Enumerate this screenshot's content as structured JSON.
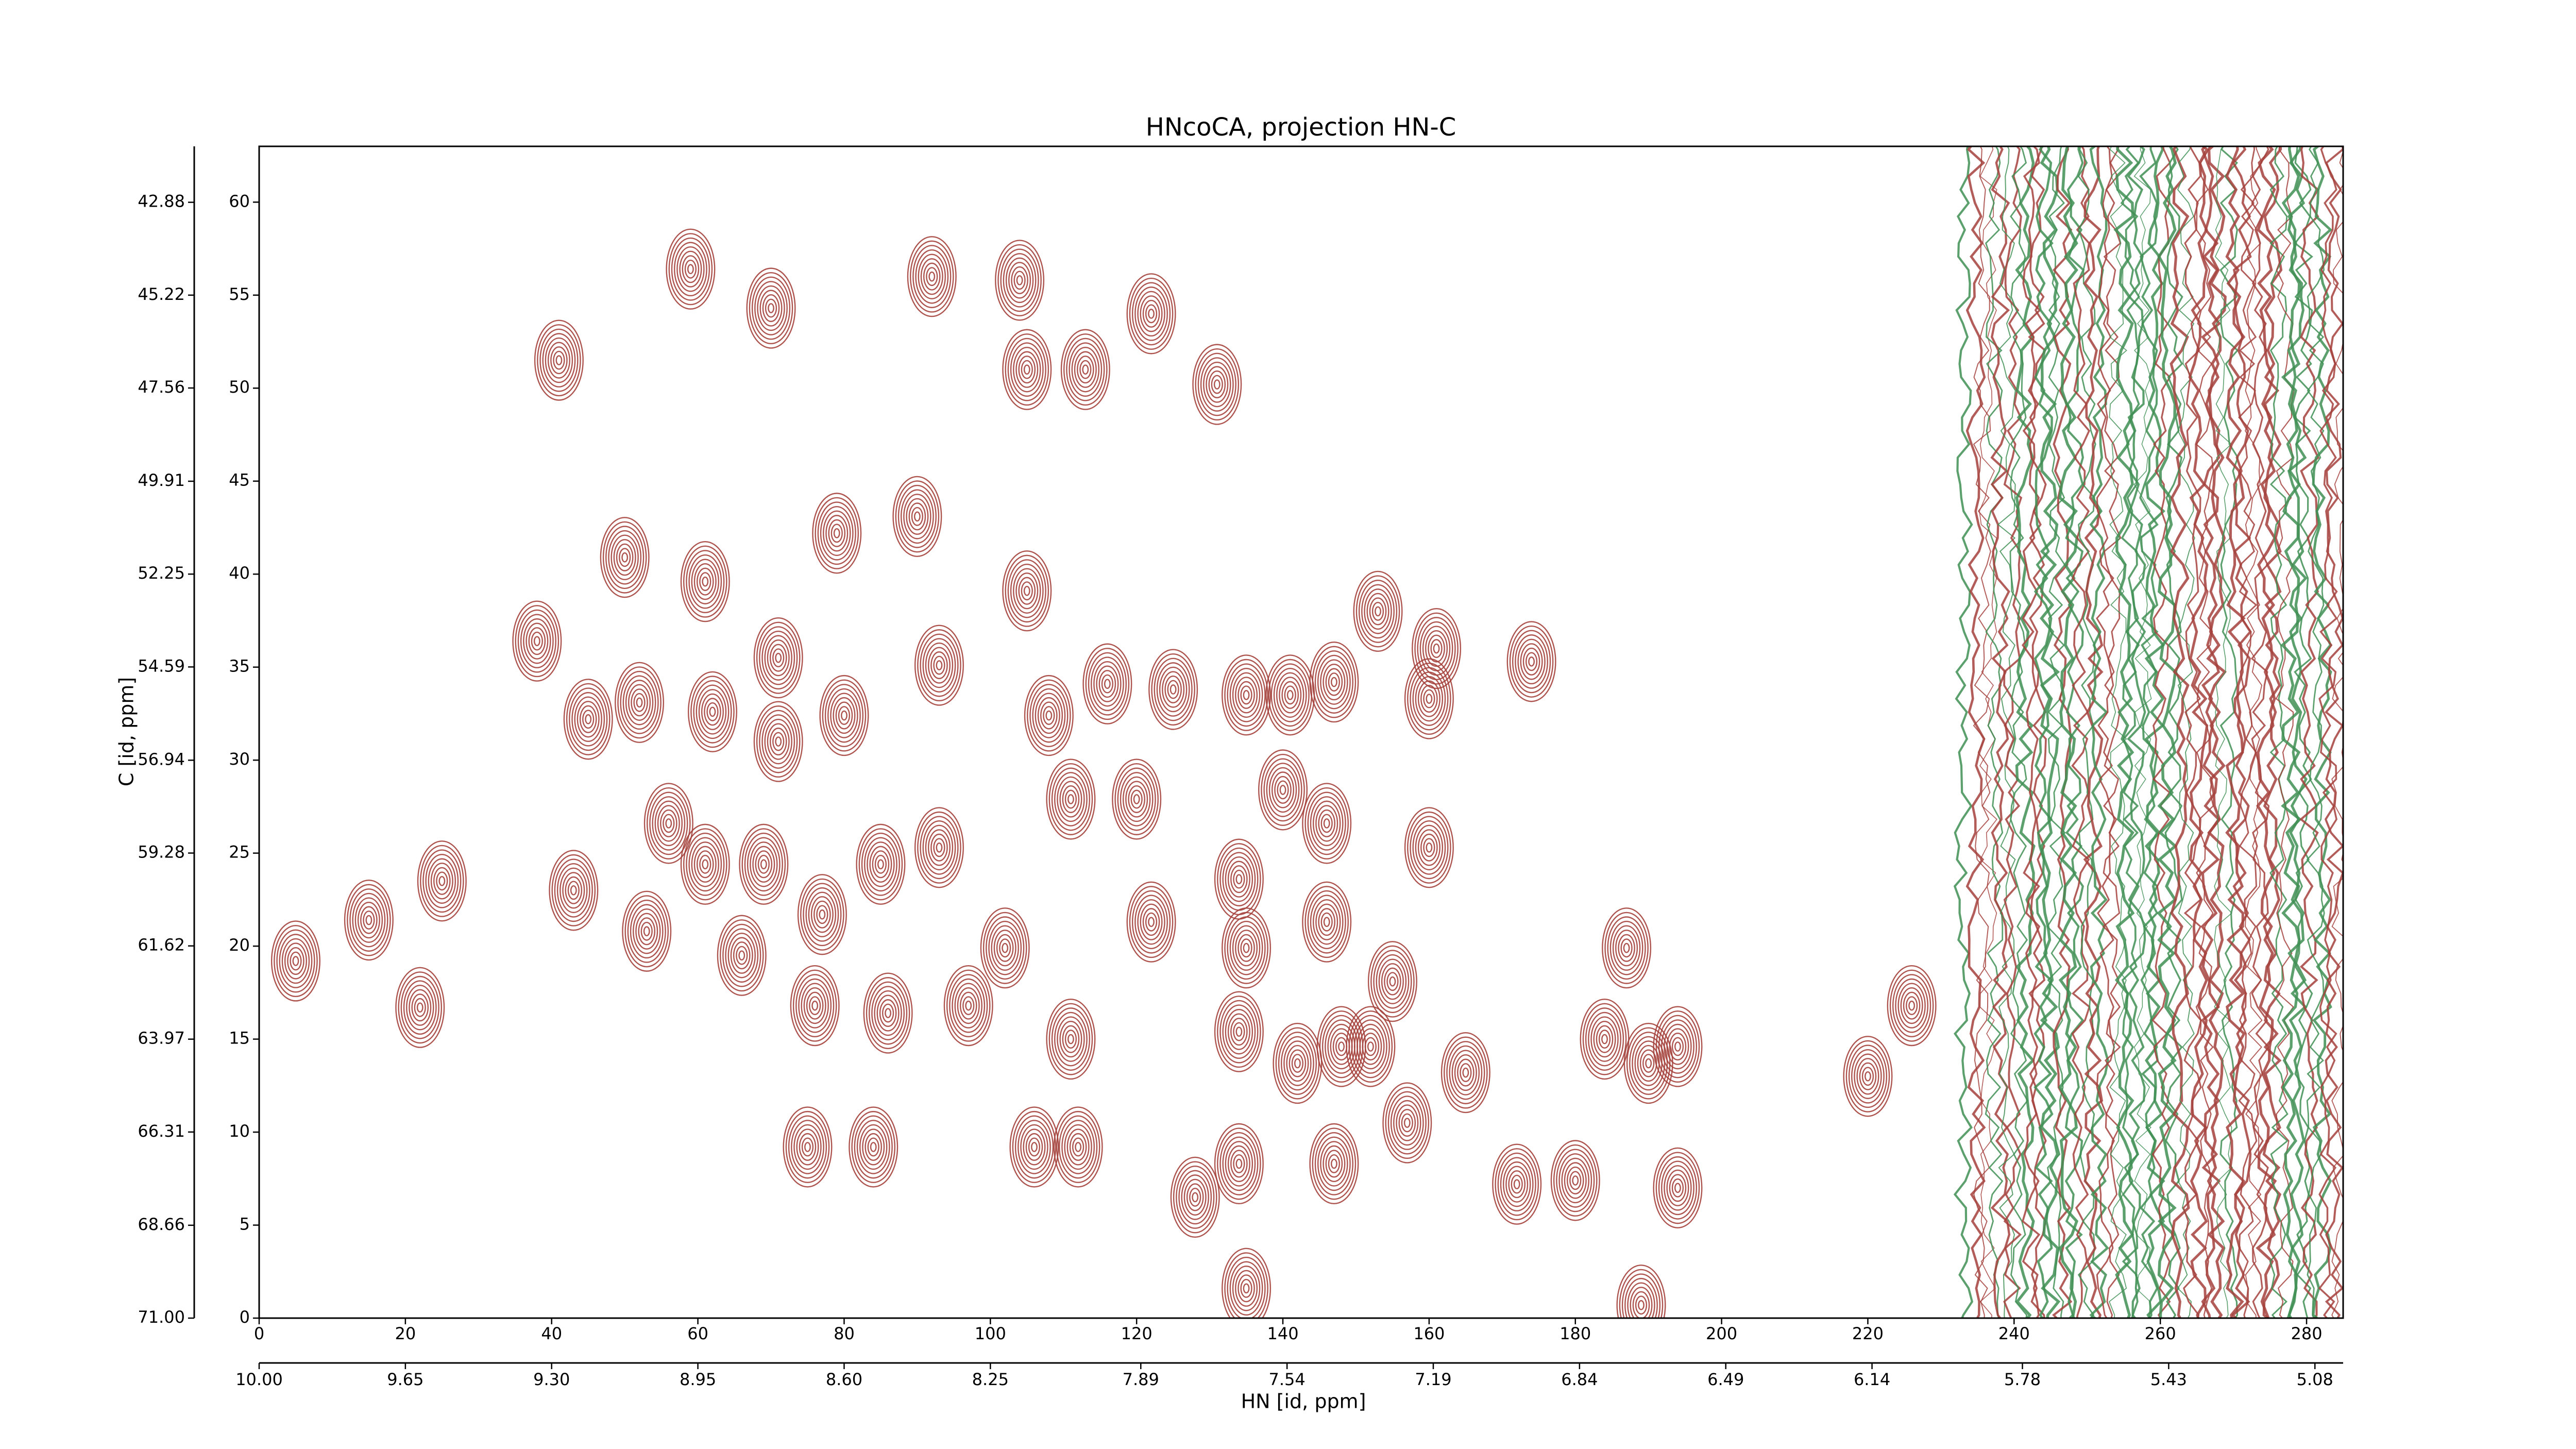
{
  "chart_data": {
    "type": "contour",
    "title": "HNcoCA, projection HN-C",
    "xlabel": "HN [id, ppm]",
    "ylabel": "C [id, ppm]",
    "xlim": [
      0,
      285
    ],
    "ylim": [
      0,
      63
    ],
    "xticks": [
      0,
      20,
      40,
      60,
      80,
      100,
      120,
      140,
      160,
      180,
      200,
      220,
      240,
      260,
      280
    ],
    "yticks": [
      0,
      5,
      10,
      15,
      20,
      25,
      30,
      35,
      40,
      45,
      50,
      55,
      60
    ],
    "x2lim": [
      10.0,
      5.0125
    ],
    "x2ticks": [
      {
        "value": 10.0,
        "label": "10.00"
      },
      9.65,
      {
        "value": 9.3,
        "label": "9.30"
      },
      8.95,
      {
        "value": 8.6,
        "label": "8.60"
      },
      8.25,
      7.89,
      7.54,
      7.19,
      6.84,
      6.49,
      6.14,
      5.78,
      5.43,
      5.08
    ],
    "y2lim": [
      71.0,
      41.47
    ],
    "y2ticks": [
      42.88,
      45.22,
      47.56,
      49.91,
      52.25,
      54.59,
      56.94,
      59.28,
      61.62,
      63.97,
      66.31,
      68.66,
      {
        "value": 71.0,
        "label": "71.00"
      }
    ],
    "color": "#a5413c",
    "color2": "#3f8f55",
    "noise_band": [
      228,
      285
    ],
    "peaks": {
      "x": [
        5,
        15,
        25,
        22,
        43,
        53,
        41,
        59,
        70,
        92,
        104,
        122,
        105,
        113,
        131,
        50,
        61,
        38,
        45,
        52,
        62,
        79,
        90,
        71,
        71,
        80,
        93,
        105,
        108,
        116,
        125,
        135,
        141,
        147,
        153,
        161,
        160,
        174,
        56,
        61,
        69,
        77,
        85,
        93,
        102,
        97,
        111,
        120,
        122,
        134,
        140,
        146,
        160,
        155,
        135,
        146,
        66,
        76,
        86,
        111,
        134,
        142,
        148,
        152,
        165,
        184,
        190,
        194,
        187,
        220,
        226,
        75,
        84,
        106,
        112,
        134,
        128,
        147,
        157,
        172,
        180,
        194,
        189,
        135
      ],
      "y": [
        19.2,
        21.4,
        23.5,
        16.7,
        23,
        20.8,
        51.5,
        56.4,
        54.3,
        56,
        55.8,
        54,
        51,
        51,
        50.2,
        40.9,
        39.6,
        36.4,
        32.2,
        33.1,
        32.6,
        42.2,
        43.1,
        35.5,
        31,
        32.4,
        35.1,
        39.1,
        32.4,
        34.1,
        33.8,
        33.5,
        33.5,
        34.2,
        38,
        36,
        33.3,
        35.3,
        26.6,
        24.4,
        24.4,
        21.7,
        24.4,
        25.3,
        19.9,
        16.8,
        27.9,
        27.9,
        21.3,
        23.6,
        28.4,
        26.6,
        25.3,
        18.1,
        19.9,
        21.3,
        19.5,
        16.8,
        16.4,
        15,
        15.4,
        13.7,
        14.6,
        14.6,
        13.2,
        15,
        13.7,
        14.6,
        19.9,
        13,
        16.8,
        9.2,
        9.2,
        9.2,
        9.2,
        8.3,
        6.5,
        8.3,
        10.5,
        7.2,
        7.4,
        7,
        0.7,
        1.6
      ]
    }
  }
}
